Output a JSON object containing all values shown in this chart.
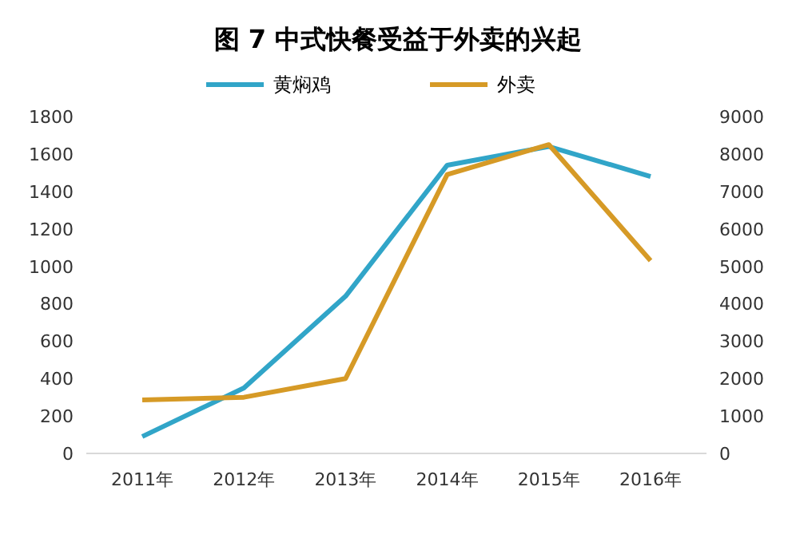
{
  "chart_data": {
    "type": "line",
    "title": "图 7   中式快餐受益于外卖的兴起",
    "categories": [
      "2011年",
      "2012年",
      "2013年",
      "2014年",
      "2015年",
      "2016年"
    ],
    "series": [
      {
        "name": "黄焖鸡",
        "color": "#31a5c8",
        "values": [
          90,
          350,
          840,
          1540,
          1640,
          1480
        ]
      },
      {
        "name": "外卖",
        "color": "#d69a26",
        "values": [
          1430,
          1500,
          2000,
          7450,
          8250,
          5150
        ],
        "axis": "y2"
      }
    ],
    "ylim": [
      0,
      1800
    ],
    "yticks": [
      0,
      200,
      400,
      600,
      800,
      1000,
      1200,
      1400,
      1600,
      1800
    ],
    "y2lim": [
      0,
      9000
    ],
    "y2ticks": [
      0,
      1000,
      2000,
      3000,
      4000,
      5000,
      6000,
      7000,
      8000,
      9000
    ],
    "legend": "top",
    "grid": false,
    "marker": "none",
    "line_style": "solid"
  }
}
